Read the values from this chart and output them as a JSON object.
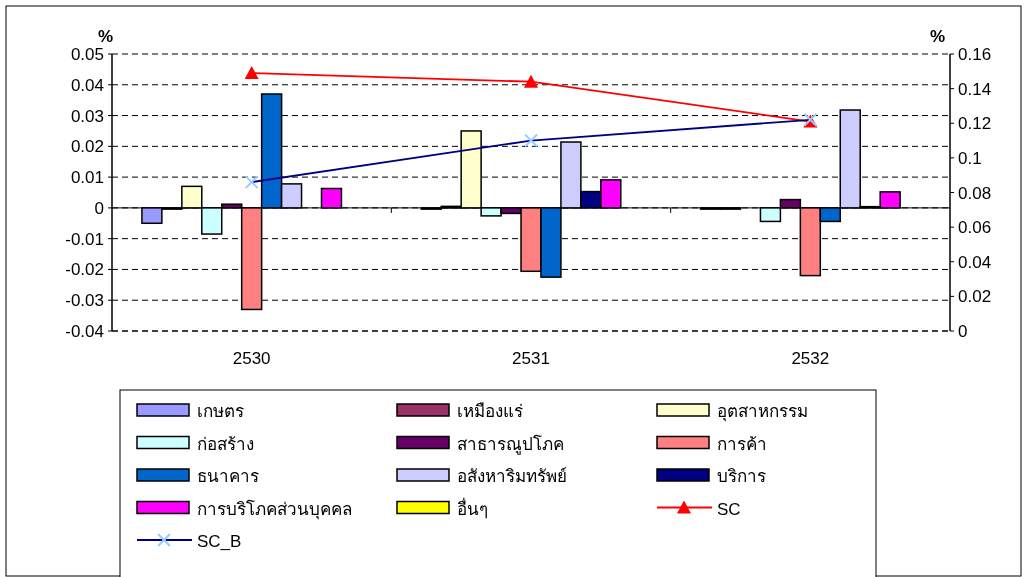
{
  "chart_data": {
    "type": "bar",
    "categories": [
      "2530",
      "2531",
      "2532"
    ],
    "ylabel": "%",
    "y2label": "%",
    "ylim": [
      -0.04,
      0.05
    ],
    "yticks": [
      -0.04,
      -0.03,
      -0.02,
      -0.01,
      0,
      0.01,
      0.02,
      0.03,
      0.04,
      0.05
    ],
    "y2lim": [
      0,
      0.16
    ],
    "y2ticks": [
      0,
      0.02,
      0.04,
      0.06,
      0.08,
      0.1,
      0.12,
      0.14,
      0.16
    ],
    "grid": "y",
    "legend": "bottom",
    "series": [
      {
        "name": "เกษตร",
        "color": "#9999ff",
        "values": [
          -0.005,
          -0.0004,
          -0.0004
        ]
      },
      {
        "name": "เหมืองแร่",
        "color": "#993366",
        "values": [
          -0.0004,
          0.0005,
          -0.0004
        ]
      },
      {
        "name": "อุตสาหกรรม",
        "color": "#ffffcc",
        "values": [
          0.007,
          0.025,
          0
        ]
      },
      {
        "name": "ก่อสร้าง",
        "color": "#ccffff",
        "values": [
          -0.0085,
          -0.0026,
          -0.0044
        ]
      },
      {
        "name": "สาธารณูปโภค",
        "color": "#660066",
        "values": [
          0.0012,
          -0.0018,
          0.0027
        ]
      },
      {
        "name": "การค้า",
        "color": "#ff8080",
        "values": [
          -0.033,
          -0.0206,
          -0.022
        ]
      },
      {
        "name": "ธนาคาร",
        "color": "#0066cc",
        "values": [
          0.037,
          -0.0225,
          -0.0044
        ]
      },
      {
        "name": "อสังหาริมทรัพย์",
        "color": "#ccccff",
        "values": [
          0.0078,
          0.0214,
          0.0318
        ]
      },
      {
        "name": "บริการ",
        "color": "#000080",
        "values": [
          0,
          0.0053,
          0.0004
        ]
      },
      {
        "name": "การบริโภคส่วนบุคคล",
        "color": "#ff00ff",
        "values": [
          0.0063,
          0.0091,
          0.0052
        ]
      },
      {
        "name": "อื่นๆ",
        "color": "#ffff00",
        "values": [
          0,
          0,
          0
        ]
      },
      {
        "name": "SC",
        "type": "line",
        "axis": "y2",
        "marker": "triangle",
        "color": "#ff0000",
        "values": [
          0.149,
          0.144,
          0.121
        ]
      },
      {
        "name": "SC_B",
        "type": "line",
        "axis": "y2",
        "marker": "cross",
        "color": "#000080",
        "values": [
          0.086,
          0.11,
          0.122
        ]
      }
    ]
  }
}
